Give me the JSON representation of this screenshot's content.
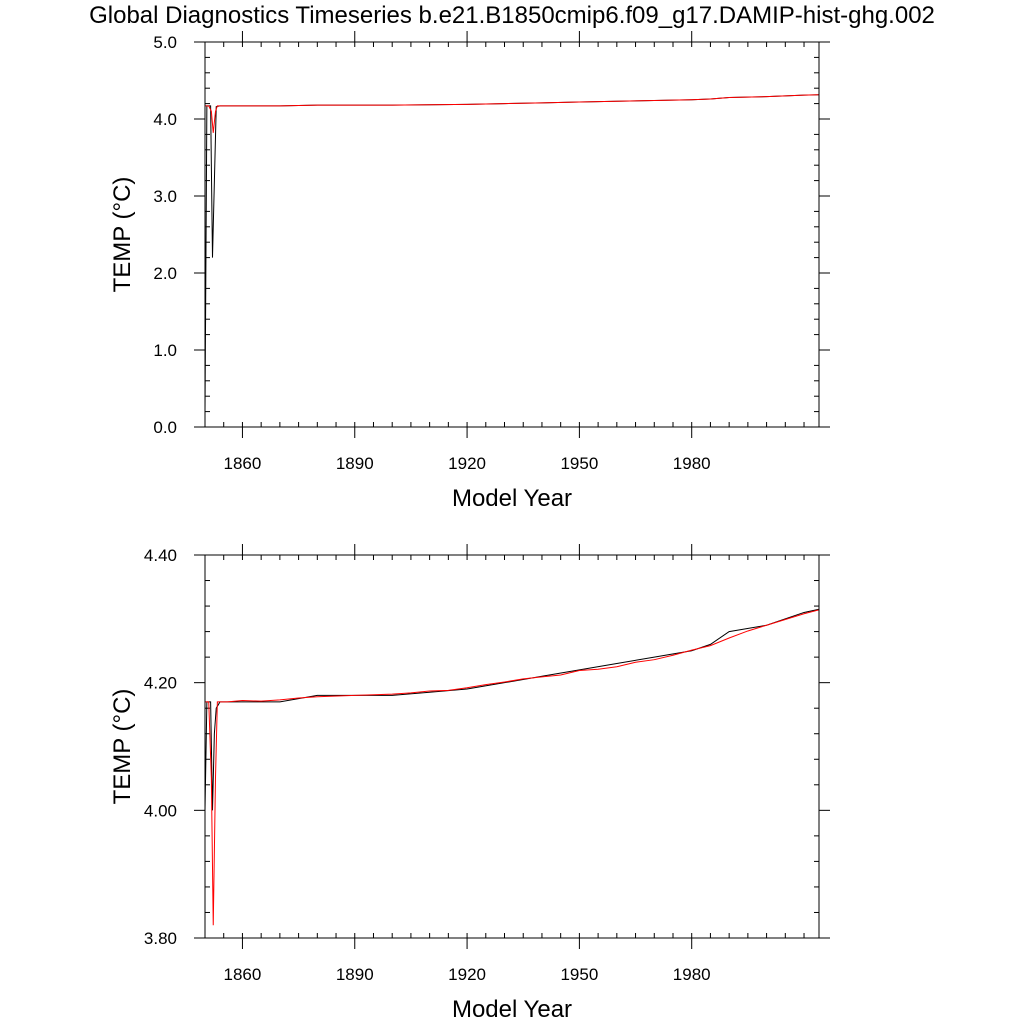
{
  "page": {
    "title": "Global Diagnostics Timeseries b.e21.B1850cmip6.f09_g17.DAMIP-hist-ghg.002"
  },
  "colors": {
    "series_black": "#000000",
    "series_red": "#ff0000",
    "axes": "#000000"
  },
  "chart_data": [
    {
      "type": "line",
      "title": "",
      "xlabel": "Model Year",
      "ylabel": "TEMP (°C)",
      "xlim": [
        1850,
        2014
      ],
      "ylim": [
        0.0,
        5.0
      ],
      "x_ticks": [
        1860,
        1890,
        1920,
        1950,
        1980
      ],
      "x_tick_labels": [
        "1860",
        "1890",
        "1920",
        "1950",
        "1980"
      ],
      "y_ticks": [
        0.0,
        1.0,
        2.0,
        3.0,
        4.0,
        5.0
      ],
      "y_tick_labels": [
        "0.0",
        "1.0",
        "2.0",
        "3.0",
        "4.0",
        "5.0"
      ],
      "grid": false,
      "series": [
        {
          "color": "#000000",
          "x": [
            1850,
            1850.5,
            1851,
            1851.5,
            1852,
            1853,
            1854,
            1856,
            1860,
            1870,
            1880,
            1890,
            1900,
            1910,
            1920,
            1930,
            1940,
            1950,
            1960,
            1970,
            1980,
            1985,
            1990,
            2000,
            2010,
            2014
          ],
          "y": [
            0.2,
            4.17,
            4.17,
            4.17,
            2.2,
            4.16,
            4.17,
            4.17,
            4.17,
            4.17,
            4.18,
            4.18,
            4.18,
            4.185,
            4.19,
            4.2,
            4.21,
            4.22,
            4.23,
            4.24,
            4.25,
            4.26,
            4.28,
            4.29,
            4.31,
            4.315
          ]
        },
        {
          "color": "#ff0000",
          "x": [
            1850,
            1851,
            1851.7,
            1852.2,
            1852.8,
            1853.3,
            1854,
            1856,
            1860,
            1870,
            1880,
            1890,
            1900,
            1910,
            1920,
            1930,
            1940,
            1950,
            1960,
            1970,
            1980,
            1985,
            1990,
            2000,
            2010,
            2014
          ],
          "y": [
            4.17,
            4.17,
            4.1,
            3.82,
            4.1,
            4.17,
            4.17,
            4.17,
            4.17,
            4.17,
            4.18,
            4.18,
            4.18,
            4.185,
            4.19,
            4.2,
            4.21,
            4.22,
            4.23,
            4.24,
            4.25,
            4.26,
            4.28,
            4.29,
            4.31,
            4.315
          ]
        }
      ]
    },
    {
      "type": "line",
      "title": "",
      "xlabel": "Model Year",
      "ylabel": "TEMP (°C)",
      "xlim": [
        1850,
        2014
      ],
      "ylim": [
        3.8,
        4.4
      ],
      "x_ticks": [
        1860,
        1890,
        1920,
        1950,
        1980
      ],
      "x_tick_labels": [
        "1860",
        "1890",
        "1920",
        "1950",
        "1980"
      ],
      "y_ticks": [
        3.8,
        4.0,
        4.2,
        4.4
      ],
      "y_tick_labels": [
        "3.80",
        "4.00",
        "4.20",
        "4.40"
      ],
      "grid": false,
      "series": [
        {
          "color": "#000000",
          "x": [
            1850,
            1850.5,
            1851,
            1851.5,
            1852,
            1852.5,
            1853,
            1854,
            1856,
            1860,
            1870,
            1880,
            1890,
            1900,
            1910,
            1920,
            1930,
            1940,
            1950,
            1960,
            1970,
            1980,
            1985,
            1990,
            2000,
            2010,
            2014
          ],
          "y": [
            4.0,
            4.17,
            4.17,
            4.17,
            4.0,
            4.12,
            4.16,
            4.17,
            4.17,
            4.17,
            4.17,
            4.18,
            4.18,
            4.18,
            4.185,
            4.19,
            4.2,
            4.21,
            4.22,
            4.23,
            4.24,
            4.25,
            4.26,
            4.28,
            4.29,
            4.31,
            4.315
          ]
        },
        {
          "color": "#ff0000",
          "x": [
            1850,
            1851,
            1851.7,
            1852.2,
            1852.8,
            1853.3,
            1854,
            1856,
            1860,
            1865,
            1870,
            1875,
            1880,
            1890,
            1900,
            1905,
            1910,
            1915,
            1920,
            1925,
            1930,
            1935,
            1940,
            1945,
            1950,
            1955,
            1960,
            1965,
            1970,
            1975,
            1980,
            1985,
            1990,
            1995,
            2000,
            2005,
            2010,
            2014
          ],
          "y": [
            4.17,
            4.17,
            4.05,
            3.82,
            4.05,
            4.17,
            4.17,
            4.17,
            4.172,
            4.171,
            4.173,
            4.176,
            4.178,
            4.18,
            4.182,
            4.184,
            4.187,
            4.188,
            4.192,
            4.197,
            4.201,
            4.206,
            4.209,
            4.212,
            4.219,
            4.221,
            4.225,
            4.232,
            4.236,
            4.243,
            4.251,
            4.258,
            4.27,
            4.281,
            4.29,
            4.299,
            4.308,
            4.314
          ]
        }
      ]
    }
  ]
}
